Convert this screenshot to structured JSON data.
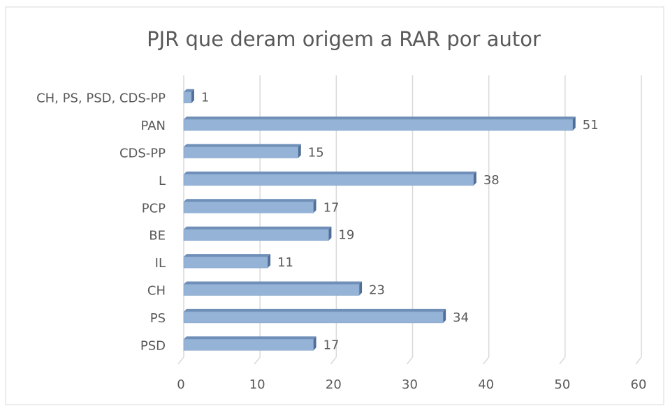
{
  "chart_data": {
    "type": "bar",
    "orientation": "horizontal",
    "title": "PJR que deram origem a RAR por autor",
    "categories": [
      "CH, PS, PSD, CDS-PP",
      "PAN",
      "CDS-PP",
      "L",
      "PCP",
      "BE",
      "IL",
      "CH",
      "PS",
      "PSD"
    ],
    "values": [
      1,
      51,
      15,
      38,
      17,
      19,
      11,
      23,
      34,
      17
    ],
    "color": "#95b3d7",
    "xlim": [
      0,
      60
    ],
    "xticks": [
      0,
      10,
      20,
      30,
      40,
      50,
      60
    ],
    "grid": true
  }
}
